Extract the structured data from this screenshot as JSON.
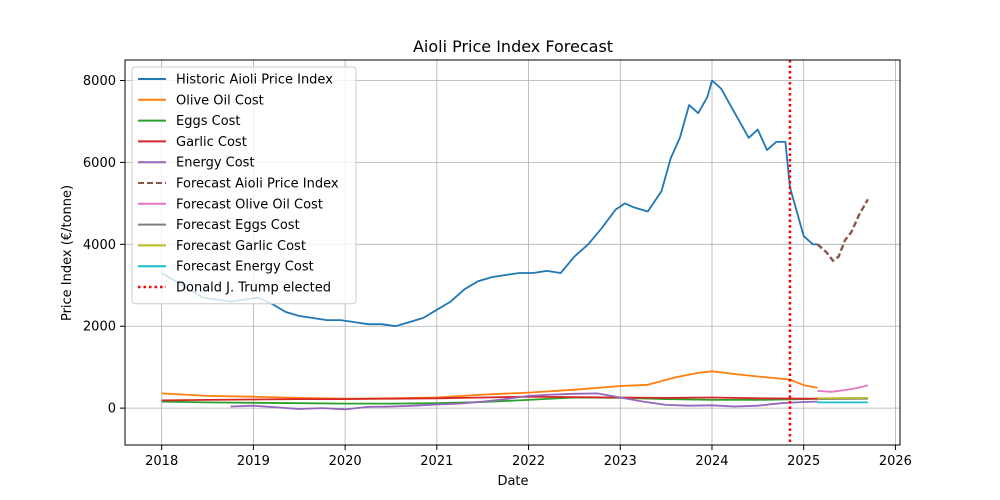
{
  "chart_data": {
    "type": "line",
    "title": "Aioli Price Index Forecast",
    "xlabel": "Date",
    "ylabel": "Price Index (€/tonne)",
    "xlim": [
      2017.6,
      2026.05
    ],
    "ylim": [
      -900,
      8500
    ],
    "x_ticks": [
      2018,
      2019,
      2020,
      2021,
      2022,
      2023,
      2024,
      2025,
      2026
    ],
    "y_ticks": [
      0,
      2000,
      4000,
      6000,
      8000
    ],
    "grid": true,
    "legend_position": "upper left",
    "colors": {
      "historic_aioli": "#1f77b4",
      "olive_oil": "#ff7f0e",
      "eggs": "#2ca02c",
      "garlic": "#d62728",
      "energy": "#9467bd",
      "forecast_aioli": "#8c564b",
      "forecast_olive_oil": "#e377c2",
      "forecast_eggs": "#7f7f7f",
      "forecast_garlic": "#bcbd22",
      "forecast_energy": "#17becf",
      "event_line": "#ff0000"
    },
    "series": [
      {
        "name": "Historic Aioli Price Index",
        "color": "#1f77b4",
        "style": "solid",
        "x": [
          2018.0,
          2018.15,
          2018.3,
          2018.45,
          2018.6,
          2018.75,
          2018.9,
          2019.05,
          2019.2,
          2019.35,
          2019.5,
          2019.65,
          2019.8,
          2019.95,
          2020.1,
          2020.25,
          2020.4,
          2020.55,
          2020.7,
          2020.85,
          2021.0,
          2021.15,
          2021.3,
          2021.45,
          2021.6,
          2021.75,
          2021.9,
          2022.05,
          2022.2,
          2022.35,
          2022.5,
          2022.65,
          2022.8,
          2022.95,
          2023.05,
          2023.15,
          2023.3,
          2023.45,
          2023.55,
          2023.65,
          2023.75,
          2023.85,
          2023.95,
          2024.0,
          2024.1,
          2024.2,
          2024.3,
          2024.4,
          2024.5,
          2024.6,
          2024.7,
          2024.8,
          2024.85,
          2024.9,
          2024.95,
          2025.0,
          2025.1,
          2025.15
        ],
        "values": [
          3300,
          3100,
          2900,
          2700,
          2650,
          2600,
          2650,
          2700,
          2550,
          2350,
          2250,
          2200,
          2150,
          2150,
          2100,
          2050,
          2050,
          2000,
          2100,
          2200,
          2400,
          2600,
          2900,
          3100,
          3200,
          3250,
          3300,
          3300,
          3350,
          3300,
          3700,
          4000,
          4400,
          4850,
          5000,
          4900,
          4800,
          5300,
          6100,
          6600,
          7400,
          7200,
          7600,
          8000,
          7800,
          7400,
          7000,
          6600,
          6800,
          6300,
          6500,
          6500,
          5400,
          5000,
          4600,
          4200,
          4000,
          4000
        ]
      },
      {
        "name": "Olive Oil Cost",
        "color": "#ff7f0e",
        "style": "solid",
        "x": [
          2018.0,
          2018.5,
          2019.0,
          2019.5,
          2020.0,
          2020.5,
          2021.0,
          2021.5,
          2022.0,
          2022.5,
          2023.0,
          2023.3,
          2023.6,
          2023.85,
          2024.0,
          2024.3,
          2024.6,
          2024.85,
          2025.0,
          2025.15
        ],
        "values": [
          360,
          300,
          280,
          250,
          230,
          240,
          260,
          330,
          380,
          450,
          540,
          570,
          750,
          860,
          900,
          820,
          750,
          700,
          560,
          500
        ]
      },
      {
        "name": "Eggs Cost",
        "color": "#2ca02c",
        "style": "solid",
        "x": [
          2018.0,
          2018.5,
          2019.0,
          2019.5,
          2020.0,
          2020.5,
          2021.0,
          2021.5,
          2022.0,
          2022.5,
          2023.0,
          2023.5,
          2024.0,
          2024.5,
          2025.0,
          2025.15
        ],
        "values": [
          160,
          140,
          130,
          120,
          110,
          110,
          120,
          150,
          200,
          260,
          250,
          220,
          200,
          200,
          220,
          230
        ]
      },
      {
        "name": "Garlic Cost",
        "color": "#d62728",
        "style": "solid",
        "x": [
          2018.0,
          2018.5,
          2019.0,
          2019.5,
          2020.0,
          2020.5,
          2021.0,
          2021.5,
          2022.0,
          2022.5,
          2023.0,
          2023.5,
          2024.0,
          2024.5,
          2025.0,
          2025.15
        ],
        "values": [
          190,
          200,
          210,
          220,
          220,
          230,
          240,
          260,
          280,
          270,
          260,
          250,
          260,
          240,
          230,
          230
        ]
      },
      {
        "name": "Energy Cost",
        "color": "#9467bd",
        "style": "solid",
        "x": [
          2018.75,
          2019.0,
          2019.25,
          2019.5,
          2019.75,
          2020.0,
          2020.25,
          2020.5,
          2020.75,
          2021.0,
          2021.25,
          2021.5,
          2021.75,
          2022.0,
          2022.25,
          2022.5,
          2022.75,
          2023.0,
          2023.25,
          2023.5,
          2023.75,
          2024.0,
          2024.25,
          2024.5,
          2024.75,
          2025.0,
          2025.15
        ],
        "values": [
          40,
          60,
          20,
          -20,
          0,
          -30,
          30,
          40,
          60,
          90,
          110,
          160,
          220,
          300,
          330,
          350,
          360,
          260,
          160,
          80,
          60,
          70,
          40,
          60,
          120,
          150,
          160
        ]
      },
      {
        "name": "Forecast Aioli Price Index",
        "color": "#8c564b",
        "style": "dashed",
        "x": [
          2025.15,
          2025.25,
          2025.32,
          2025.38,
          2025.45,
          2025.52,
          2025.6,
          2025.65,
          2025.7
        ],
        "values": [
          4000,
          3800,
          3600,
          3700,
          4100,
          4300,
          4700,
          4900,
          5100
        ]
      },
      {
        "name": "Forecast Olive Oil Cost",
        "color": "#e377c2",
        "style": "solid",
        "x": [
          2025.15,
          2025.3,
          2025.45,
          2025.6,
          2025.7
        ],
        "values": [
          420,
          400,
          440,
          500,
          560
        ]
      },
      {
        "name": "Forecast Eggs Cost",
        "color": "#7f7f7f",
        "style": "solid",
        "x": [
          2025.15,
          2025.7
        ],
        "values": [
          220,
          230
        ]
      },
      {
        "name": "Forecast Garlic Cost",
        "color": "#bcbd22",
        "style": "solid",
        "x": [
          2025.15,
          2025.7
        ],
        "values": [
          240,
          250
        ]
      },
      {
        "name": "Forecast Energy Cost",
        "color": "#17becf",
        "style": "solid",
        "x": [
          2025.15,
          2025.7
        ],
        "values": [
          140,
          140
        ]
      }
    ],
    "events": [
      {
        "name": "Donald J. Trump elected",
        "x": 2024.85,
        "color": "#ff0000",
        "style": "dotted"
      }
    ],
    "legend": [
      "Historic Aioli Price Index",
      "Olive Oil Cost",
      "Eggs Cost",
      "Garlic Cost",
      "Energy Cost",
      "Forecast Aioli Price Index",
      "Forecast Olive Oil Cost",
      "Forecast Eggs Cost",
      "Forecast Garlic Cost",
      "Forecast Energy Cost",
      "Donald J. Trump elected"
    ]
  }
}
